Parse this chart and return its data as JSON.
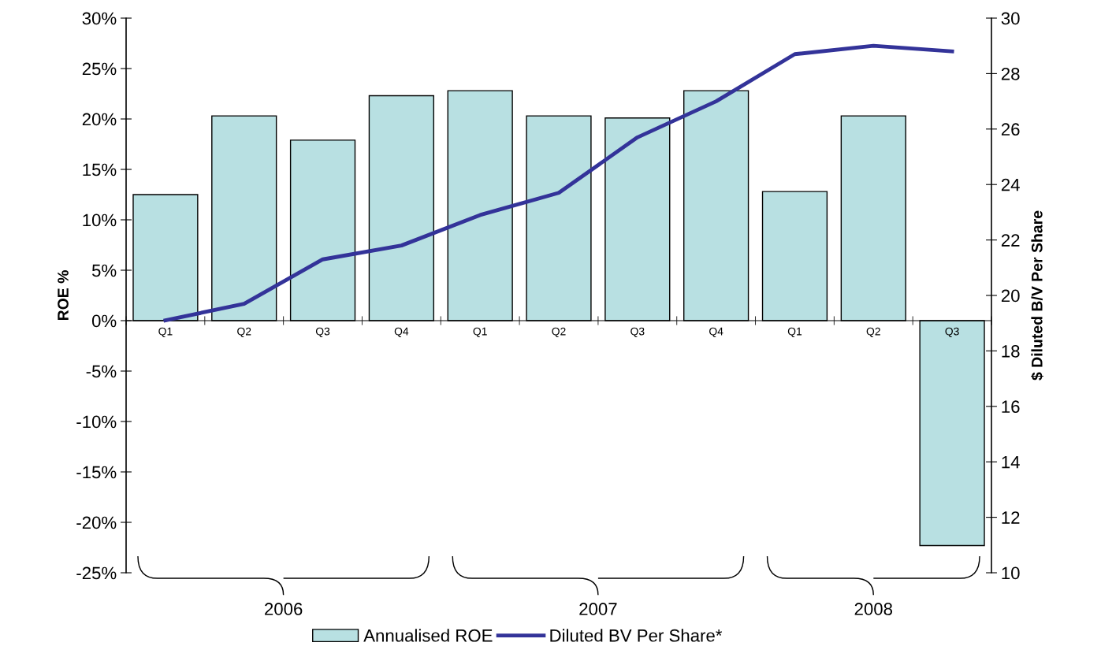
{
  "chart_data": {
    "type": "bar",
    "categories": [
      "Q1",
      "Q2",
      "Q3",
      "Q4",
      "Q1",
      "Q2",
      "Q3",
      "Q4",
      "Q1",
      "Q2",
      "Q3"
    ],
    "series": [
      {
        "name": "Annualised ROE",
        "color": "#b8e0e2",
        "values": [
          12.5,
          20.3,
          17.9,
          22.3,
          22.8,
          20.3,
          20.1,
          22.8,
          12.8,
          20.3,
          -22.3
        ]
      },
      {
        "name": "Diluted BV Per Share*",
        "type": "line",
        "axis": "y2",
        "color": "#333399",
        "values": [
          19.1,
          19.7,
          21.3,
          21.8,
          22.9,
          23.7,
          25.7,
          27.0,
          28.7,
          29.0,
          28.8
        ]
      }
    ],
    "ylabel": "ROE %",
    "y2label": "$ Diluted B/V Per Share",
    "ylim": [
      -25,
      30
    ],
    "yticks": [
      {
        "value": -25,
        "label": "-25%"
      },
      {
        "value": -20,
        "label": "-20%"
      },
      {
        "value": -15,
        "label": "-15%"
      },
      {
        "value": -10,
        "label": "-10%"
      },
      {
        "value": -5,
        "label": "-5%"
      },
      {
        "value": 0,
        "label": "0%"
      },
      {
        "value": 5,
        "label": "5%"
      },
      {
        "value": 10,
        "label": "10%"
      },
      {
        "value": 15,
        "label": "15%"
      },
      {
        "value": 20,
        "label": "20%"
      },
      {
        "value": 25,
        "label": "25%"
      },
      {
        "value": 30,
        "label": "30%"
      }
    ],
    "y2lim": [
      10,
      30
    ],
    "y2ticks": [
      10,
      12,
      14,
      16,
      18,
      20,
      22,
      24,
      26,
      28,
      30
    ],
    "annotations": [
      "2006",
      "2007",
      "2008"
    ],
    "legend": "bottom",
    "grid": false,
    "marker": "none",
    "line_style": "solid"
  }
}
